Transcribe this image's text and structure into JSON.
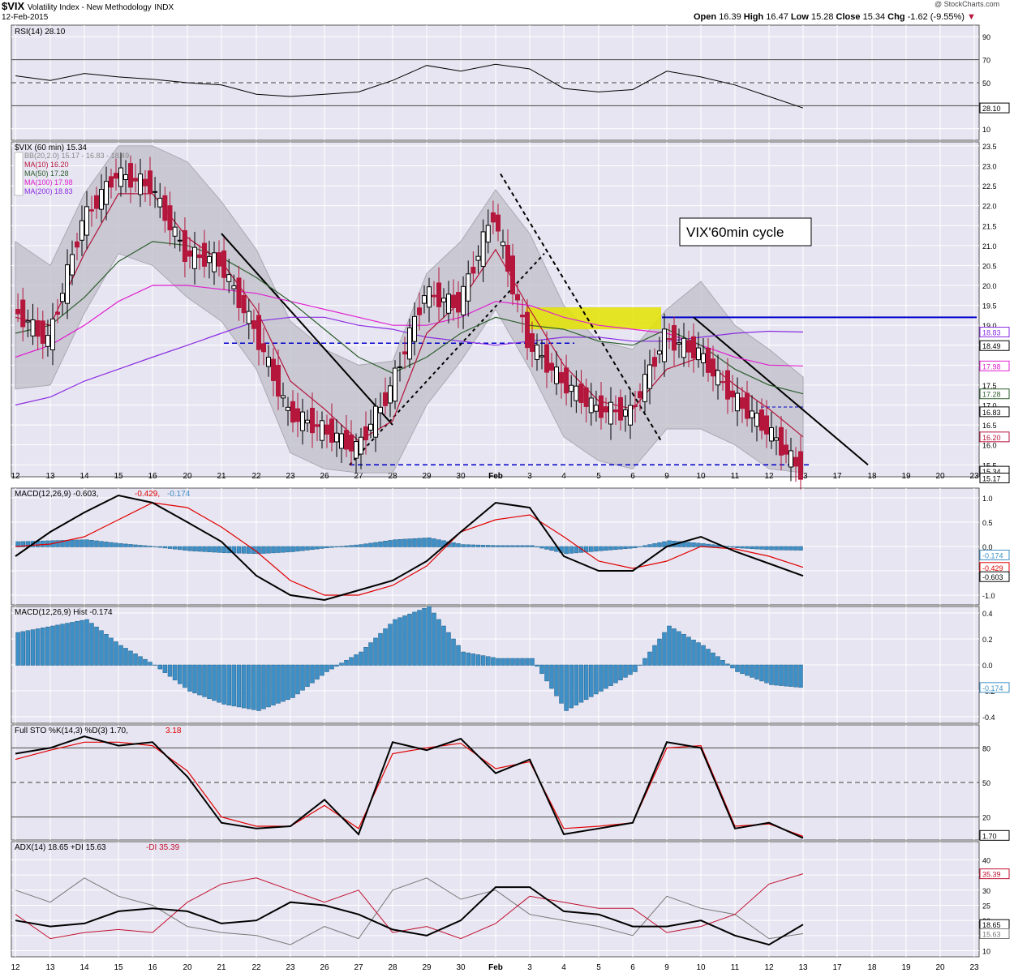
{
  "header": {
    "symbol": "$VIX",
    "name": "Volatility Index - New Methodology",
    "exchange": "INDX",
    "date": "12-Feb-2015",
    "copyright": "@ StockCharts.com",
    "open_label": "Open",
    "open": "16.39",
    "high_label": "High",
    "high": "16.47",
    "low_label": "Low",
    "low": "15.28",
    "close_label": "Close",
    "close": "15.34",
    "chg_label": "Chg",
    "chg": "-1.62 (-9.55%)"
  },
  "colors": {
    "panel_bg": "#e7e5f1",
    "grid": "#ffffff",
    "up": "#000000",
    "down": "#b5163c",
    "ma10": "#b5163c",
    "ma50": "#2e5e2e",
    "ma100": "#e020d0",
    "ma200": "#8a2be2",
    "bb_fill": "#bcbcc6",
    "hist": "#3d8fc6",
    "blue_line": "#0000cc",
    "yellow_box": "#e4e400"
  },
  "annotation": "VIX'60min cycle",
  "x_axis": {
    "labels": [
      "12",
      "13",
      "14",
      "15",
      "16",
      "20",
      "21",
      "22",
      "23",
      "26",
      "27",
      "28",
      "29",
      "30",
      "Feb",
      "3",
      "4",
      "5",
      "6",
      "9",
      "10",
      "11",
      "12",
      "13",
      "17",
      "18",
      "19",
      "20",
      "23"
    ]
  },
  "panels": {
    "rsi": {
      "legend": "RSI(14) 28.10",
      "ticks": [
        "90",
        "70",
        "50",
        "30",
        "10"
      ],
      "value_tag": "28.10"
    },
    "price": {
      "legend": "$VIX (60 min) 15.34",
      "bb": "BB(20,2.0) 15.17 - 16.83 - 18.49",
      "ma10": "MA(10) 16.20",
      "ma50": "MA(50) 17.28",
      "ma100": "MA(100) 17.98",
      "ma200": "MA(200) 18.83",
      "ticks": [
        "23.5",
        "23.0",
        "22.5",
        "22.0",
        "21.5",
        "21.0",
        "20.5",
        "20.0",
        "19.5",
        "19.0",
        "18.5",
        "18.0",
        "17.5",
        "17.0",
        "16.5",
        "16.0",
        "15.5"
      ],
      "tags": [
        "18.83",
        "18.49",
        "17.98",
        "17.28",
        "16.83",
        "16.20",
        "15.34",
        "15.17"
      ]
    },
    "macd": {
      "legend_main": "MACD(12,26,9) -0.603,",
      "legend_sig": "-0.429,",
      "legend_hist": "-0.174",
      "ticks": [
        "1.0",
        "0.5",
        "0.0",
        "-0.5",
        "-1.0"
      ],
      "tags": [
        "-0.174",
        "-0.429",
        "-0.603"
      ]
    },
    "hist": {
      "legend": "MACD(12,26,9) Hist -0.174",
      "ticks": [
        "0.4",
        "0.2",
        "0.0",
        "-0.2",
        "-0.4"
      ],
      "tag": "-0.174"
    },
    "sto": {
      "legend_main": "Full STO %K(14,3) %D(3) 1.70,",
      "legend_d": "3.18",
      "ticks": [
        "80",
        "50",
        "20"
      ],
      "tag": "1.70"
    },
    "adx": {
      "legend_main": "ADX(14) 18.65 +DI 15.63",
      "legend_mdi": "-DI 35.39",
      "ticks": [
        "40",
        "35",
        "30",
        "25",
        "20",
        "15",
        "10"
      ],
      "tags": [
        "35.39",
        "18.65",
        "15.63"
      ]
    }
  },
  "chart_data": [
    {
      "type": "line",
      "title": "RSI(14) 28.10",
      "ylim": [
        0,
        100
      ],
      "x": [
        "12",
        "13",
        "14",
        "15",
        "16",
        "20",
        "21",
        "22",
        "23",
        "26",
        "27",
        "28",
        "29",
        "30",
        "Feb",
        "3",
        "4",
        "5",
        "6",
        "9",
        "10",
        "11",
        "12",
        "13"
      ],
      "series": [
        {
          "name": "RSI(14)",
          "values": [
            56,
            52,
            58,
            55,
            53,
            50,
            48,
            40,
            38,
            40,
            42,
            52,
            65,
            60,
            66,
            62,
            45,
            42,
            44,
            60,
            55,
            48,
            38,
            28
          ]
        }
      ]
    },
    {
      "type": "line",
      "title": "$VIX (60 min) 15.34",
      "ylim": [
        15.2,
        23.6
      ],
      "x": [
        "12",
        "13",
        "14",
        "15",
        "16",
        "20",
        "21",
        "22",
        "23",
        "26",
        "27",
        "28",
        "29",
        "30",
        "Feb",
        "3",
        "4",
        "5",
        "6",
        "9",
        "10",
        "11",
        "12",
        "13"
      ],
      "series": [
        {
          "name": "$VIX",
          "values": [
            19.4,
            18.6,
            21.6,
            22.8,
            22.5,
            20.8,
            20.6,
            18.9,
            16.8,
            16.4,
            15.9,
            17.4,
            19.8,
            19.5,
            21.8,
            18.6,
            17.6,
            16.9,
            16.8,
            18.7,
            18.3,
            17.2,
            16.4,
            15.34
          ]
        },
        {
          "name": "MA(10) 16.20",
          "values": [
            19.2,
            19.0,
            20.8,
            22.3,
            22.3,
            21.2,
            20.6,
            19.4,
            17.6,
            16.9,
            16.1,
            16.6,
            18.8,
            19.6,
            20.9,
            19.4,
            18.0,
            17.1,
            16.9,
            17.9,
            18.2,
            17.5,
            16.9,
            16.2
          ]
        },
        {
          "name": "MA(50) 17.28",
          "values": [
            18.8,
            19.0,
            19.7,
            20.6,
            21.1,
            21.0,
            20.7,
            20.2,
            19.6,
            18.9,
            18.2,
            17.8,
            18.2,
            18.8,
            19.2,
            19.0,
            18.9,
            18.6,
            18.5,
            18.9,
            18.5,
            17.9,
            17.5,
            17.28
          ]
        },
        {
          "name": "MA(100) 17.98",
          "values": [
            18.2,
            18.5,
            19.0,
            19.6,
            20.0,
            20.0,
            19.9,
            19.8,
            19.6,
            19.4,
            19.2,
            19.0,
            19.0,
            19.2,
            19.6,
            19.5,
            19.2,
            19.0,
            18.9,
            18.8,
            18.5,
            18.2,
            18.0,
            17.98
          ]
        },
        {
          "name": "MA(200) 18.83",
          "values": [
            17.0,
            17.2,
            17.6,
            17.9,
            18.2,
            18.5,
            18.8,
            19.1,
            19.2,
            19.2,
            19.0,
            18.9,
            18.7,
            18.6,
            18.5,
            18.6,
            18.7,
            18.7,
            18.6,
            18.6,
            18.7,
            18.8,
            18.85,
            18.83
          ]
        }
      ]
    },
    {
      "type": "line",
      "title": "MACD(12,26,9) -0.603, -0.429, -0.174",
      "ylim": [
        -1.2,
        1.2
      ],
      "x": [
        "12",
        "13",
        "14",
        "15",
        "16",
        "20",
        "21",
        "22",
        "23",
        "26",
        "27",
        "28",
        "29",
        "30",
        "Feb",
        "3",
        "4",
        "5",
        "6",
        "9",
        "10",
        "11",
        "12",
        "13"
      ],
      "series": [
        {
          "name": "MACD",
          "values": [
            -0.2,
            0.3,
            0.7,
            1.05,
            0.9,
            0.5,
            0.1,
            -0.6,
            -1.0,
            -1.1,
            -0.9,
            -0.7,
            -0.3,
            0.3,
            0.9,
            0.8,
            -0.2,
            -0.5,
            -0.5,
            0.0,
            0.2,
            -0.1,
            -0.35,
            -0.603
          ]
        },
        {
          "name": "Signal",
          "values": [
            0.0,
            0.05,
            0.2,
            0.55,
            0.9,
            0.8,
            0.4,
            -0.1,
            -0.7,
            -1.0,
            -1.0,
            -0.8,
            -0.4,
            0.3,
            0.55,
            0.65,
            0.2,
            -0.3,
            -0.45,
            -0.3,
            0.0,
            -0.05,
            -0.2,
            -0.429
          ]
        }
      ]
    },
    {
      "type": "bar",
      "title": "MACD(12,26,9) Hist -0.174",
      "ylim": [
        -0.45,
        0.45
      ],
      "categories": [
        "12",
        "13",
        "14",
        "15",
        "16",
        "20",
        "21",
        "22",
        "23",
        "26",
        "27",
        "28",
        "29",
        "30",
        "Feb",
        "3",
        "4",
        "5",
        "6",
        "9",
        "10",
        "11",
        "12",
        "13"
      ],
      "values": [
        0.25,
        0.3,
        0.35,
        0.15,
        0.0,
        -0.2,
        -0.3,
        -0.35,
        -0.25,
        -0.05,
        0.1,
        0.35,
        0.45,
        0.1,
        0.05,
        0.05,
        -0.35,
        -0.2,
        -0.05,
        0.3,
        0.15,
        -0.05,
        -0.15,
        -0.174
      ]
    },
    {
      "type": "line",
      "title": "Full STO %K(14,3) %D(3) 1.70, 3.18",
      "ylim": [
        0,
        100
      ],
      "x": [
        "12",
        "13",
        "14",
        "15",
        "16",
        "20",
        "21",
        "22",
        "23",
        "26",
        "27",
        "28",
        "29",
        "30",
        "Feb",
        "3",
        "4",
        "5",
        "6",
        "9",
        "10",
        "11",
        "12",
        "13"
      ],
      "series": [
        {
          "name": "%K",
          "values": [
            75,
            80,
            90,
            82,
            85,
            55,
            15,
            10,
            12,
            35,
            5,
            85,
            78,
            88,
            58,
            70,
            5,
            10,
            15,
            85,
            80,
            10,
            15,
            1.7
          ]
        },
        {
          "name": "%D",
          "values": [
            70,
            78,
            85,
            85,
            82,
            60,
            20,
            12,
            12,
            30,
            10,
            75,
            80,
            84,
            62,
            68,
            10,
            12,
            15,
            80,
            82,
            12,
            14,
            3.18
          ]
        }
      ]
    },
    {
      "type": "line",
      "title": "ADX(14) 18.65 +DI 15.63 -DI 35.39",
      "ylim": [
        8,
        46
      ],
      "x": [
        "12",
        "13",
        "14",
        "15",
        "16",
        "20",
        "21",
        "22",
        "23",
        "26",
        "27",
        "28",
        "29",
        "30",
        "Feb",
        "3",
        "4",
        "5",
        "6",
        "9",
        "10",
        "11",
        "12",
        "13"
      ],
      "series": [
        {
          "name": "ADX",
          "values": [
            20,
            18,
            19,
            23,
            24,
            23,
            19,
            20,
            26,
            25,
            22,
            17,
            15,
            20,
            31,
            31,
            23,
            22,
            18,
            18,
            20,
            15,
            12,
            18.65
          ]
        },
        {
          "name": "+DI",
          "values": [
            30,
            26,
            34,
            28,
            25,
            18,
            16,
            15,
            12,
            18,
            14,
            30,
            34,
            27,
            30,
            22,
            20,
            18,
            15,
            28,
            24,
            22,
            14,
            15.63
          ]
        },
        {
          "name": "-DI",
          "values": [
            22,
            14,
            16,
            17,
            16,
            26,
            32,
            34,
            30,
            26,
            30,
            16,
            18,
            14,
            19,
            28,
            26,
            24,
            24,
            16,
            18,
            22,
            32,
            35.39
          ]
        }
      ]
    }
  ]
}
